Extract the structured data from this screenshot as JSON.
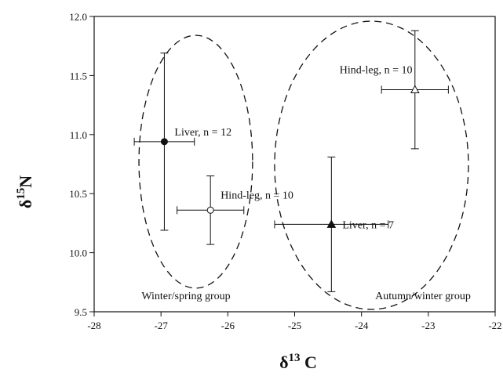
{
  "chart_data": {
    "type": "scatter",
    "xlabel": {
      "base": "δ",
      "sup": "13",
      "rest": " C"
    },
    "ylabel": {
      "base": "δ",
      "sup": "15",
      "rest": "N"
    },
    "xlim": [
      -28,
      -22
    ],
    "ylim": [
      9.5,
      12.0
    ],
    "xticks": [
      "-28",
      "-27",
      "-26",
      "-25",
      "-24",
      "-23",
      "-22"
    ],
    "yticks": [
      "9.5",
      "10.0",
      "10.5",
      "11.0",
      "11.5",
      "12.0"
    ],
    "points": [
      {
        "x": -26.95,
        "y": 10.94,
        "xerr": 0.45,
        "yerr": 0.75,
        "marker": "circle-filled",
        "label": "Liver, n = 12"
      },
      {
        "x": -26.26,
        "y": 10.36,
        "xerr": 0.5,
        "yerr": 0.29,
        "marker": "circle-open",
        "label": "Hind-leg, n = 10"
      },
      {
        "x": -24.45,
        "y": 10.24,
        "xerr": 0.85,
        "yerr": 0.57,
        "marker": "triangle-filled",
        "label": "Liver, n = 7"
      },
      {
        "x": -23.2,
        "y": 11.38,
        "xerr": 0.5,
        "yerr": 0.5,
        "marker": "triangle-open",
        "label": "Hind-leg, n = 10"
      }
    ],
    "groups": [
      {
        "label": "Winter/spring group",
        "cx": -26.48,
        "cy": 10.77,
        "rx": 0.85,
        "ry": 1.07
      },
      {
        "label": "Autumn/winter group",
        "cx": -23.85,
        "cy": 10.74,
        "rx": 1.45,
        "ry": 1.22
      }
    ]
  }
}
